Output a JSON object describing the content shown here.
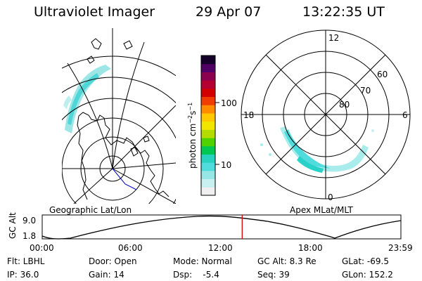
{
  "header": {
    "title": "Ultraviolet Imager",
    "date": "29 Apr 07",
    "time": "13:22:35 UT"
  },
  "geo_panel": {
    "label": "Geographic Lat/Lon"
  },
  "polar_panel": {
    "label": "Apex MLat/MLT",
    "lat_labels": [
      "80",
      "70",
      "60"
    ],
    "mlt_labels": {
      "top": "12",
      "left": "18",
      "right": "6",
      "bottom": "0"
    }
  },
  "colorbar": {
    "unit_prefix": "photon cm",
    "unit_exp1": "−2",
    "unit_s": "s",
    "unit_exp2": "−1",
    "ticks": [
      "100",
      "10"
    ],
    "colors": [
      "#f0f0f0",
      "#c8f0f0",
      "#96e6e6",
      "#50dcdc",
      "#28d2be",
      "#00c850",
      "#50d200",
      "#b4dc00",
      "#f0e600",
      "#ffc800",
      "#ff8c00",
      "#f03c00",
      "#d20000",
      "#b40032",
      "#8c0050",
      "#500064",
      "#140028"
    ]
  },
  "altitude_plot": {
    "ylabel": "GC Alt",
    "yticks": [
      "9.0",
      "1.8"
    ],
    "xticks": [
      "00:00",
      "06:00",
      "12:00",
      "18:00",
      "23:59"
    ],
    "current_time_hours": 13.38,
    "marker_color": "#dc0000"
  },
  "status": {
    "row1": {
      "flt": "Flt: LBHL",
      "door": "Door: Open",
      "mode": "Mode: Normal",
      "gc_alt": "GC Alt: 8.3 Re",
      "glat": "GLat: -69.5"
    },
    "row2": {
      "ip": "IP: 36.0",
      "gain": "Gain: 14",
      "dsp": "Dsp:    -5.4",
      "seq": "Seq: 39",
      "glon": "GLon: 152.2"
    }
  }
}
